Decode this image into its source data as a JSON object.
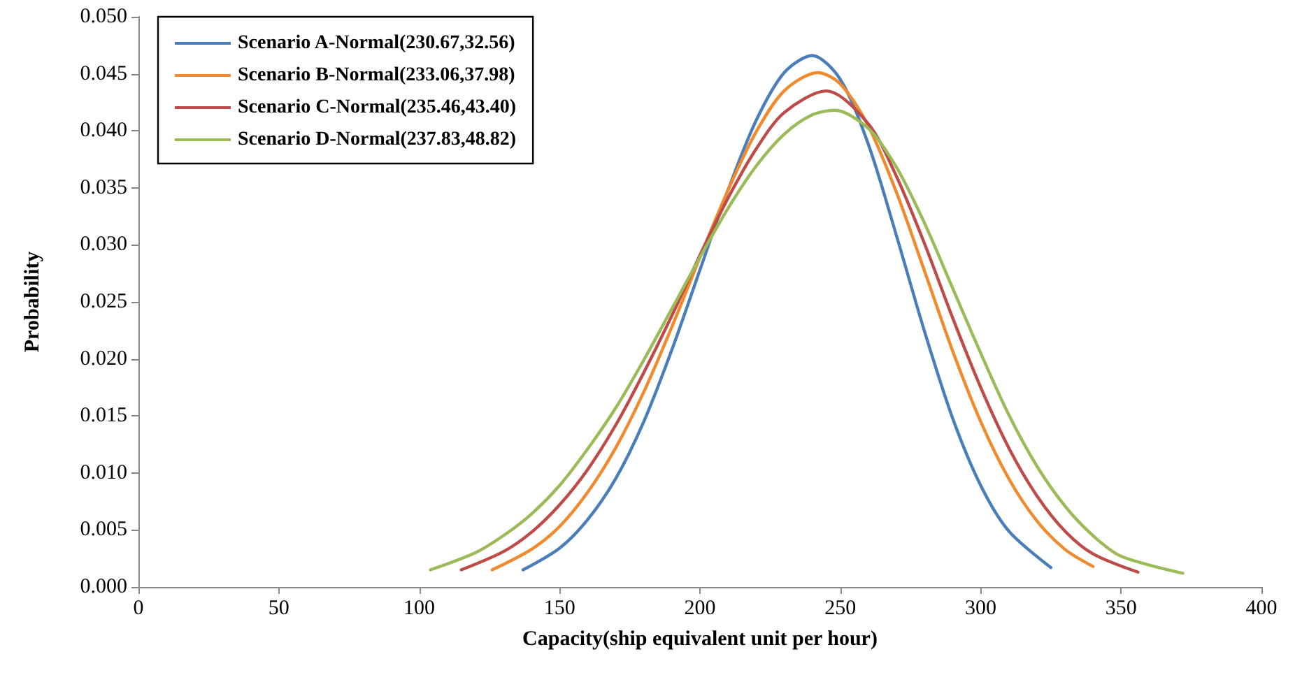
{
  "chart_data": {
    "type": "line",
    "xlabel": "Capacity(ship equivalent unit per hour)",
    "ylabel": "Probability",
    "xlim": [
      0,
      400
    ],
    "xticks": [
      0,
      50,
      100,
      150,
      200,
      250,
      300,
      350,
      400
    ],
    "ylim": [
      0,
      0.05
    ],
    "yticks": [
      {
        "value": 0,
        "label": "0.000"
      },
      {
        "value": 0.005,
        "label": "0.005"
      },
      {
        "value": 0.01,
        "label": "0.010"
      },
      {
        "value": 0.015,
        "label": "0.015"
      },
      {
        "value": 0.02,
        "label": "0.020"
      },
      {
        "value": 0.025,
        "label": "0.025"
      },
      {
        "value": 0.03,
        "label": "0.030"
      },
      {
        "value": 0.035,
        "label": "0.035"
      },
      {
        "value": 0.04,
        "label": "0.040"
      },
      {
        "value": 0.045,
        "label": "0.045"
      },
      {
        "value": 0.05,
        "label": "0.050"
      }
    ],
    "grid": false,
    "legend": "top left",
    "marker": "none",
    "line_style": "solid",
    "series": [
      {
        "name": "Scenario A-Normal(230.67,32.56)",
        "color": "#4a7ebb",
        "x": [
          137,
          150,
          160,
          170,
          180,
          190,
          200,
          210,
          220,
          230,
          240,
          250,
          260,
          270,
          280,
          290,
          300,
          310,
          325
        ],
        "values": [
          0.0015,
          0.0034,
          0.0059,
          0.0095,
          0.0145,
          0.0208,
          0.0278,
          0.0348,
          0.0409,
          0.0451,
          0.0466,
          0.0445,
          0.0388,
          0.0308,
          0.0224,
          0.0148,
          0.0089,
          0.0049,
          0.0017
        ]
      },
      {
        "name": "Scenario B-Normal(233.06,37.98)",
        "color": "#f08a2c",
        "x": [
          126,
          140,
          150,
          160,
          170,
          180,
          190,
          200,
          210,
          220,
          230,
          242,
          250,
          260,
          270,
          280,
          290,
          300,
          310,
          320,
          330,
          340
        ],
        "values": [
          0.0015,
          0.0033,
          0.0053,
          0.0083,
          0.0122,
          0.0171,
          0.0228,
          0.0289,
          0.0348,
          0.0399,
          0.0435,
          0.0451,
          0.0441,
          0.0404,
          0.0346,
          0.0277,
          0.0207,
          0.0145,
          0.0095,
          0.0058,
          0.0033,
          0.0018
        ]
      },
      {
        "name": "Scenario C-Normal(235.46,43.40)",
        "color": "#be4b48",
        "x": [
          115,
          130,
          140,
          150,
          160,
          170,
          180,
          190,
          200,
          210,
          220,
          230,
          245,
          260,
          270,
          280,
          290,
          300,
          310,
          320,
          330,
          340,
          356
        ],
        "values": [
          0.0015,
          0.0031,
          0.0048,
          0.0072,
          0.0103,
          0.0142,
          0.0188,
          0.0238,
          0.0291,
          0.0341,
          0.0384,
          0.0416,
          0.0435,
          0.0406,
          0.036,
          0.0301,
          0.0236,
          0.0175,
          0.0122,
          0.008,
          0.0049,
          0.0029,
          0.0013
        ]
      },
      {
        "name": "Scenario D-Normal(237.83,48.82)",
        "color": "#9bbb59",
        "x": [
          104,
          120,
          130,
          140,
          150,
          160,
          170,
          180,
          190,
          200,
          210,
          220,
          230,
          240,
          248,
          260,
          270,
          280,
          290,
          300,
          310,
          320,
          330,
          340,
          350,
          372
        ],
        "values": [
          0.0015,
          0.003,
          0.0045,
          0.0064,
          0.0089,
          0.0121,
          0.0157,
          0.0199,
          0.0244,
          0.0289,
          0.0332,
          0.0369,
          0.0397,
          0.0414,
          0.0418,
          0.0402,
          0.0368,
          0.0319,
          0.0262,
          0.0205,
          0.0151,
          0.0106,
          0.0071,
          0.0045,
          0.0027,
          0.0012
        ]
      }
    ]
  }
}
